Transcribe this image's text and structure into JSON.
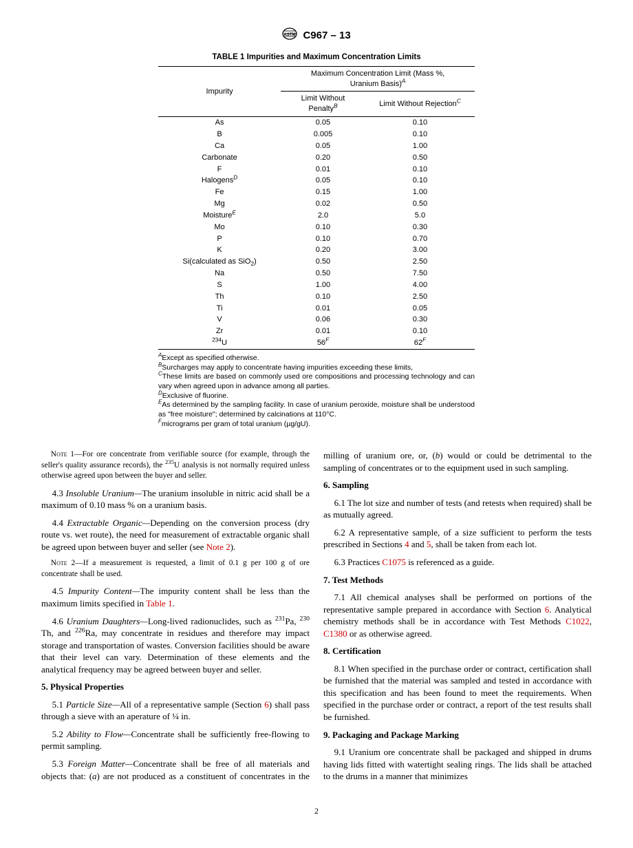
{
  "header": {
    "doc_id": "C967 – 13"
  },
  "table": {
    "title": "TABLE 1 Impurities and Maximum Concentration Limits",
    "col1": "Impurity",
    "span_header_line1": "Maximum Concentration Limit (Mass %,",
    "span_header_line2": "Uranium Basis)",
    "span_header_sup": "A",
    "sub1_line1": "Limit Without",
    "sub1_line2": "Penalty",
    "sub1_sup": "B",
    "sub2": "Limit Without Rejection",
    "sub2_sup": "C",
    "rows": [
      {
        "imp": "As",
        "p": "0.05",
        "r": "0.10"
      },
      {
        "imp": "B",
        "p": "0.005",
        "r": "0.10"
      },
      {
        "imp": "Ca",
        "p": "0.05",
        "r": "1.00"
      },
      {
        "imp": "Carbonate",
        "p": "0.20",
        "r": "0.50"
      },
      {
        "imp": "F",
        "p": "0.01",
        "r": "0.10"
      },
      {
        "imp": "Halogens",
        "imp_sup": "D",
        "p": "0.05",
        "r": "0.10"
      },
      {
        "imp": "Fe",
        "p": "0.15",
        "r": "1.00"
      },
      {
        "imp": "Mg",
        "p": "0.02",
        "r": "0.50"
      },
      {
        "imp": "Moisture",
        "imp_sup": "E",
        "p": "2.0",
        "r": "5.0"
      },
      {
        "imp": "Mo",
        "p": "0.10",
        "r": "0.30"
      },
      {
        "imp": "P",
        "p": "0.10",
        "r": "0.70"
      },
      {
        "imp": "K",
        "p": "0.20",
        "r": "3.00"
      },
      {
        "imp": "Si(calculated as SiO",
        "imp_sub": "2",
        "imp_tail": ")",
        "p": "0.50",
        "r": "2.50"
      },
      {
        "imp": "Na",
        "p": "0.50",
        "r": "7.50"
      },
      {
        "imp": "S",
        "p": "1.00",
        "r": "4.00"
      },
      {
        "imp": "Th",
        "p": "0.10",
        "r": "2.50"
      },
      {
        "imp": "Ti",
        "p": "0.01",
        "r": "0.05"
      },
      {
        "imp": "V",
        "p": "0.06",
        "r": "0.30"
      },
      {
        "imp": "Zr",
        "p": "0.01",
        "r": "0.10"
      },
      {
        "imp_pre_sup": "234",
        "imp": "U",
        "p": "56",
        "p_sup": "F",
        "r": "62",
        "r_sup": "F"
      }
    ]
  },
  "footnotes": {
    "a_sup": "A",
    "a": "Except as specified otherwise.",
    "b_sup": "B",
    "b": "Surcharges may apply to concentrate having impurities exceeding these limits,",
    "c_sup": "C",
    "c": "These limits are based on commonly used ore compositions and processing technology and can vary when agreed upon in advance among all parties.",
    "d_sup": "D",
    "d": "Exclusive of fluorine.",
    "e_sup": "E",
    "e": "As determined by the sampling facility. In case of uranium peroxide, moisture shall be understood as \"free moisture\"; determined by calcinations at 110°C.",
    "f_sup": "F",
    "f": "micrograms per gram of total uranium (µg/gU)."
  },
  "body": {
    "note1_label": "Note",
    "note1_num": " 1—",
    "note1": "For ore concentrate from verifiable source (for example, through the seller's quality assurance records), the ",
    "note1_sup": "235",
    "note1_tail": "U analysis is not normally required unless otherwise agreed upon between the buyer and seller.",
    "p43_num": "4.3 ",
    "p43_head": "Insoluble Uranium—",
    "p43": "The uranium insoluble in nitric acid shall be a maximum of 0.10 mass % on a uranium basis.",
    "p44_num": "4.4 ",
    "p44_head": "Extractable Organic—",
    "p44": "Depending on the conversion process (dry route vs. wet route), the need for measurement of extractable organic shall be agreed upon between buyer and seller (see ",
    "p44_ref": "Note 2",
    "p44_tail": ").",
    "note2_label": "Note",
    "note2_num": " 2—",
    "note2": "If a measurement is requested, a limit of 0.1 g per 100 g of ore concentrate shall be used.",
    "p45_num": "4.5 ",
    "p45_head": "Impurity Content—",
    "p45": "The impurity content shall be less than the maximum limits specified in ",
    "p45_ref": "Table 1",
    "p45_tail": ".",
    "p46_num": "4.6 ",
    "p46_head": "Uranium Daughters—",
    "p46_a": "Long-lived radionuclides, such as ",
    "p46_s1": "231",
    "p46_e1": "Pa, ",
    "p46_s2": "230",
    "p46_e2": " Th, and ",
    "p46_s3": "226",
    "p46_e3": "Ra, may concentrate in residues and therefore may impact storage and transportation of wastes. Conversion facilities should be aware that their level can vary. Determination of these elements and the analytical frequency may be agreed between buyer and seller.",
    "h5": "5. Physical Properties",
    "p51_num": "5.1 ",
    "p51_head": "Particle Size—",
    "p51": "All of a representative sample (Section ",
    "p51_ref": "6",
    "p51_tail": ") shall pass through a sieve with an aperature of ¼ in.",
    "p52_num": "5.2 ",
    "p52_head": "Ability to Flow—",
    "p52": "Concentrate shall be sufficiently free-flowing to permit sampling.",
    "p53_num": "5.3 ",
    "p53_head": "Foreign Matter—",
    "p53a": "Concentrate shall be free of all materials and objects that: (",
    "p53b_i": "a",
    "p53b": ") are not produced as a constituent of concentrates in the milling of uranium ore, or, (",
    "p53c_i": "b",
    "p53c": ") would or could be detrimental to the sampling of concentrates or to the equipment used in such sampling.",
    "h6": "6. Sampling",
    "p61_num": "6.1 ",
    "p61": "The lot size and number of tests (and retests when required) shall be as mutually agreed.",
    "p62_num": "6.2 ",
    "p62a": "A representative sample, of a size sufficient to perform the tests prescribed in Sections ",
    "p62_r1": "4",
    "p62b": " and ",
    "p62_r2": "5",
    "p62c": ", shall be taken from each lot.",
    "p63_num": "6.3 ",
    "p63a": "Practices ",
    "p63_ref": "C1075",
    "p63b": " is referenced as a guide.",
    "h7": "7. Test Methods",
    "p71_num": "7.1 ",
    "p71a": "All chemical analyses shall be performed on portions of the representative sample prepared in accordance with Section ",
    "p71_r1": "6",
    "p71b": ". Analytical chemistry methods shall be in accordance with Test Methods ",
    "p71_r2": "C1022",
    "p71c": ", ",
    "p71_r3": "C1380",
    "p71d": " or as otherwise agreed.",
    "h8": "8. Certification",
    "p81_num": "8.1 ",
    "p81": "When specified in the purchase order or contract, certification shall be furnished that the material was sampled and tested in accordance with this specification and has been found to meet the requirements. When specified in the purchase order or contract, a report of the test results shall be furnished.",
    "h9": "9. Packaging and Package Marking",
    "p91_num": "9.1 ",
    "p91": "Uranium ore concentrate shall be packaged and shipped in drums having lids fitted with watertight sealing rings. The lids shall be attached to the drums in a manner that minimizes"
  },
  "page_number": "2"
}
